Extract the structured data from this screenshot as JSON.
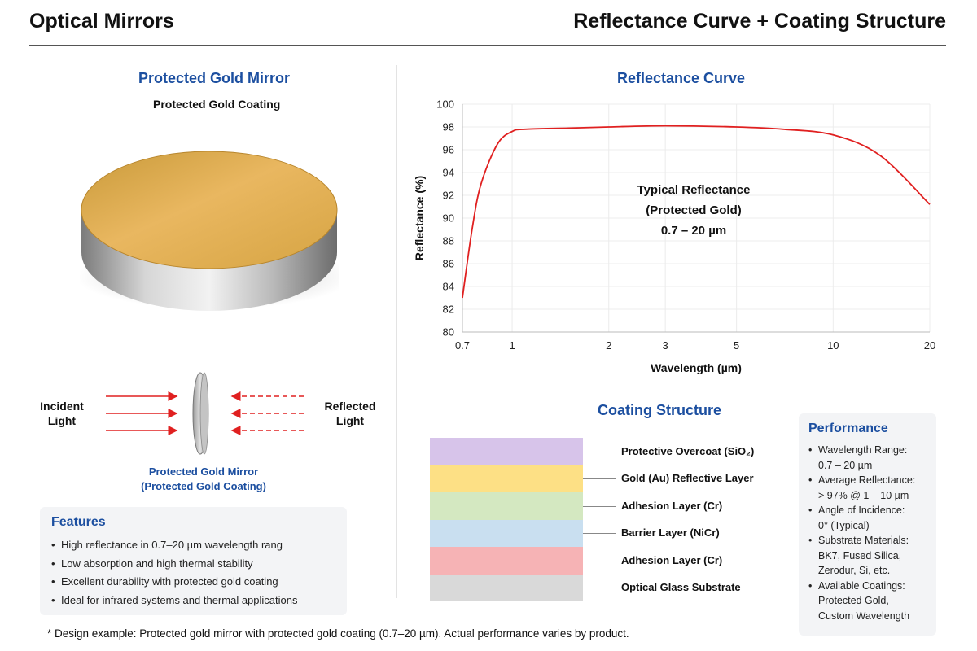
{
  "header": {
    "left_title": "Optical Mirrors",
    "right_title": "Reflectance Curve + Coating Structure"
  },
  "left_panel": {
    "title": "Protected Gold Mirror",
    "subtitle": "Protected Gold Coating",
    "incident_label_1": "Incident",
    "incident_label_2": "Light",
    "reflected_label_1": "Reflected",
    "reflected_label_2": "Light",
    "mirror_caption_1": "Protected Gold Mirror",
    "mirror_caption_2": "(Protected Gold Coating)"
  },
  "features": {
    "title": "Features",
    "items": [
      "High reflectance in 0.7–20 µm wavelength rang",
      "Low absorption and high thermal stability",
      "Excellent durability with protected gold coating",
      "Ideal for infrared systems and thermal applications"
    ]
  },
  "chart_data": {
    "type": "line",
    "title": "Reflectance Curve",
    "xlabel": "Wavelength (µm)",
    "ylabel": "Reflectance (%)",
    "x_ticks": [
      "0.7",
      "1",
      "2",
      "3",
      "5",
      "10",
      "20"
    ],
    "y_ticks": [
      "80",
      "82",
      "84",
      "86",
      "88",
      "90",
      "92",
      "94",
      "96",
      "98",
      "100"
    ],
    "ylim": [
      80,
      100
    ],
    "x_scale": "log",
    "grid": true,
    "annotation": [
      "Typical Reflectance",
      "(Protected Gold)",
      "0.7 – 20 µm"
    ],
    "series": [
      {
        "color": "#e02020",
        "x": [
          0.7,
          0.75,
          0.8,
          0.9,
          1.0,
          1.1,
          1.5,
          2,
          3,
          5,
          7,
          10,
          14,
          20
        ],
        "y": [
          83,
          89,
          93,
          96.5,
          97.6,
          97.8,
          97.9,
          98,
          98.1,
          98,
          97.8,
          97.3,
          95.5,
          91.2
        ]
      }
    ]
  },
  "coating": {
    "title": "Coating Structure",
    "layers": [
      {
        "label": "Protective Overcoat (SiO₂)",
        "color": "#d7c4ea"
      },
      {
        "label": "Gold (Au) Reflective Layer",
        "color": "#fde085"
      },
      {
        "label": "Adhesion Layer (Cr)",
        "color": "#d4e8c1"
      },
      {
        "label": "Barrier Layer (NiCr)",
        "color": "#c9dff0"
      },
      {
        "label": "Adhesion Layer (Cr)",
        "color": "#f6b3b5"
      },
      {
        "label": "Optical Glass Substrate",
        "color": "#d9d9d9"
      }
    ]
  },
  "performance": {
    "title": "Performance",
    "items": [
      {
        "label": "Wavelength Range:",
        "value": "0.7 – 20 µm"
      },
      {
        "label": "Average Reflectance:",
        "value": "> 97% @ 1 – 10 µm"
      },
      {
        "label": "Angle of Incidence:",
        "value": "0° (Typical)"
      },
      {
        "label": "Substrate Materials:",
        "value": "BK7, Fused Silica, Zerodur, Si, etc."
      },
      {
        "label": "Available Coatings:",
        "value": "Protected Gold, Custom Wavelength"
      }
    ]
  },
  "footnote": "* Design example: Protected gold mirror with protected gold coating (0.7–20 µm). Actual performance varies by product."
}
